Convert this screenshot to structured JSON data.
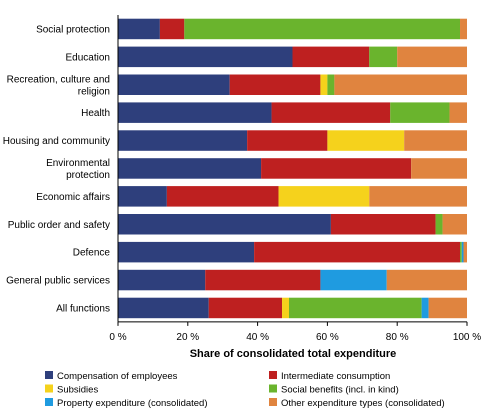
{
  "chart_data": {
    "type": "bar",
    "orientation": "horizontal",
    "stacked": true,
    "percent_stacked": true,
    "xlabel": "Share of consolidated  total expenditure",
    "xlim": [
      0,
      100
    ],
    "xticks": [
      0,
      20,
      40,
      60,
      80,
      100
    ],
    "xtick_labels": [
      "0 %",
      "20 %",
      "40 %",
      "60 %",
      "80 %",
      "100 %"
    ],
    "grid": false,
    "legend_position": "bottom",
    "categories": [
      [
        "Social protection"
      ],
      [
        "Education"
      ],
      [
        "Recreation, culture and",
        "religion"
      ],
      [
        "Health"
      ],
      [
        "Housing and community"
      ],
      [
        "Environmental",
        "protection"
      ],
      [
        "Economic affairs"
      ],
      [
        "Public order and safety"
      ],
      [
        "Defence"
      ],
      [
        "General public services"
      ],
      [
        "All functions"
      ]
    ],
    "series": [
      {
        "name": "Compensation of employees",
        "color": "#2e3f7c",
        "values": [
          12,
          50,
          32,
          44,
          37,
          41,
          14,
          61,
          39,
          25,
          26
        ]
      },
      {
        "name": "Intermediate consumption",
        "color": "#be2020",
        "values": [
          7,
          22,
          26,
          34,
          23,
          43,
          32,
          30,
          59,
          33,
          21
        ]
      },
      {
        "name": "Subsidies",
        "color": "#f5d21c",
        "values": [
          0,
          0,
          2,
          0,
          22,
          0,
          26,
          0,
          0,
          0,
          2
        ]
      },
      {
        "name": "Social benefits (incl. in kind)",
        "color": "#6ab42d",
        "values": [
          79,
          8,
          2,
          17,
          0,
          0,
          0,
          2,
          0.5,
          0,
          38
        ]
      },
      {
        "name": "Property expenditure (consolidated)",
        "color": "#1f9be0",
        "values": [
          0,
          0,
          0,
          0,
          0,
          0,
          0,
          0,
          0.5,
          19,
          2
        ]
      },
      {
        "name": "Other expenditure types (consolidated)",
        "color": "#e0843f",
        "values": [
          2,
          20,
          38,
          5,
          18,
          16,
          28,
          7,
          1,
          23,
          11
        ]
      }
    ]
  }
}
